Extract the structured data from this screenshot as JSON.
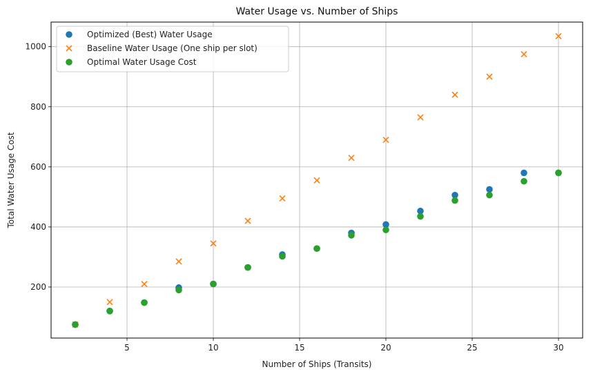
{
  "chart_data": {
    "type": "scatter",
    "title": "Water Usage vs. Number of Ships",
    "xlabel": "Number of Ships (Transits)",
    "ylabel": "Total Water Usage Cost",
    "xlim": [
      0.6,
      31.4
    ],
    "ylim": [
      30,
      1082
    ],
    "xticks": [
      5,
      10,
      15,
      20,
      25,
      30
    ],
    "yticks": [
      200,
      400,
      600,
      800,
      1000
    ],
    "grid": true,
    "legend": "top-left",
    "x": [
      2,
      4,
      6,
      8,
      10,
      12,
      14,
      16,
      18,
      20,
      22,
      24,
      26,
      28,
      30
    ],
    "series": [
      {
        "name": "Optimized (Best) Water Usage",
        "marker": "circle",
        "color": "#1f77b4",
        "values": [
          75,
          120,
          148,
          198,
          210,
          265,
          308,
          328,
          380,
          408,
          453,
          506,
          525,
          580,
          580
        ]
      },
      {
        "name": "Baseline Water Usage (One ship per slot)",
        "marker": "x",
        "color": "#ff7f0e",
        "values": [
          75,
          150,
          210,
          285,
          345,
          420,
          495,
          555,
          630,
          690,
          765,
          840,
          900,
          975,
          1035
        ]
      },
      {
        "name": "Optimal Water Usage Cost",
        "marker": "circle",
        "color": "#2ca02c",
        "values": [
          75,
          120,
          148,
          190,
          210,
          265,
          302,
          328,
          372,
          390,
          435,
          488,
          506,
          552,
          580
        ]
      }
    ]
  }
}
